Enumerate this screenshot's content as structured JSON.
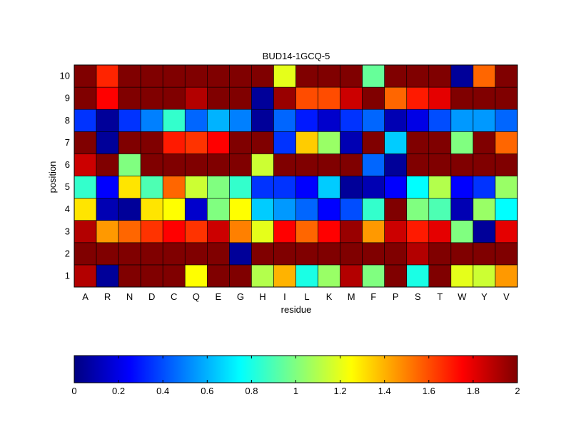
{
  "chart_data": {
    "type": "heatmap",
    "title": "BUD14-1GCQ-5",
    "xlabel": "residue",
    "ylabel": "position",
    "x_categories": [
      "A",
      "R",
      "N",
      "D",
      "C",
      "Q",
      "E",
      "G",
      "H",
      "I",
      "L",
      "K",
      "M",
      "F",
      "P",
      "S",
      "T",
      "W",
      "Y",
      "V"
    ],
    "y_categories": [
      "1",
      "2",
      "3",
      "4",
      "5",
      "6",
      "7",
      "8",
      "9",
      "10"
    ],
    "colormap": "jet",
    "color_range": [
      0,
      2
    ],
    "colorbar": {
      "ticks": [
        0,
        0.2,
        0.4,
        0.6,
        0.8,
        1,
        1.2,
        1.4,
        1.6,
        1.8,
        2
      ],
      "tick_labels": [
        "0",
        "0.2",
        "0.4",
        "0.6",
        "0.8",
        "1",
        "1.2",
        "1.4",
        "1.6",
        "1.8",
        "2"
      ],
      "placement": "bottom"
    },
    "values_by_position": {
      "10": [
        2.0,
        1.68,
        2.0,
        2.0,
        2.0,
        2.0,
        2.0,
        2.0,
        2.0,
        1.2,
        2.0,
        2.0,
        2.0,
        0.95,
        2.0,
        2.0,
        2.0,
        0.05,
        1.55,
        2.0
      ],
      "9": [
        2.0,
        1.75,
        2.0,
        2.0,
        2.0,
        1.9,
        2.0,
        2.0,
        0.05,
        1.95,
        1.6,
        1.6,
        1.85,
        2.0,
        1.55,
        1.7,
        1.8,
        2.0,
        2.0,
        2.0
      ],
      "8": [
        0.35,
        0.05,
        0.35,
        0.5,
        0.85,
        0.45,
        0.6,
        0.5,
        0.05,
        0.45,
        0.3,
        0.15,
        0.35,
        0.45,
        0.1,
        0.2,
        0.4,
        0.55,
        0.55,
        0.45
      ],
      "7": [
        2.0,
        0.05,
        2.0,
        2.0,
        1.7,
        1.65,
        1.75,
        2.0,
        2.0,
        0.35,
        1.35,
        1.05,
        0.1,
        2.0,
        0.65,
        2.0,
        2.0,
        1.0,
        2.0,
        1.55
      ],
      "6": [
        1.85,
        2.0,
        1.0,
        2.0,
        2.0,
        2.0,
        2.0,
        2.0,
        1.15,
        2.0,
        2.0,
        2.0,
        2.0,
        0.45,
        0.05,
        2.0,
        2.0,
        2.0,
        2.0,
        2.0
      ],
      "5": [
        0.85,
        0.25,
        1.3,
        0.9,
        1.55,
        1.15,
        1.0,
        0.85,
        0.35,
        0.35,
        0.25,
        0.65,
        0.05,
        0.1,
        0.25,
        0.75,
        1.1,
        0.25,
        0.35,
        1.05
      ],
      "4": [
        1.3,
        0.1,
        0.05,
        1.3,
        1.25,
        0.15,
        1.0,
        1.25,
        0.65,
        0.55,
        0.45,
        0.25,
        0.4,
        0.85,
        2.0,
        1.0,
        0.9,
        0.1,
        1.05,
        0.75
      ],
      "3": [
        1.9,
        1.45,
        1.55,
        1.65,
        1.75,
        1.65,
        1.85,
        1.5,
        1.2,
        1.75,
        1.55,
        1.75,
        1.95,
        1.45,
        1.85,
        1.7,
        1.8,
        1.0,
        0.05,
        1.8
      ],
      "2": [
        2.0,
        2.0,
        2.0,
        2.0,
        2.0,
        2.0,
        2.0,
        0.05,
        2.0,
        2.0,
        2.0,
        2.0,
        2.0,
        2.0,
        2.0,
        1.9,
        2.0,
        2.0,
        2.0,
        2.0
      ],
      "1": [
        1.9,
        0.05,
        2.0,
        2.0,
        2.0,
        1.25,
        2.0,
        2.0,
        1.1,
        1.4,
        0.8,
        1.05,
        1.9,
        1.0,
        2.0,
        0.8,
        2.0,
        1.2,
        1.15,
        1.45
      ]
    }
  }
}
